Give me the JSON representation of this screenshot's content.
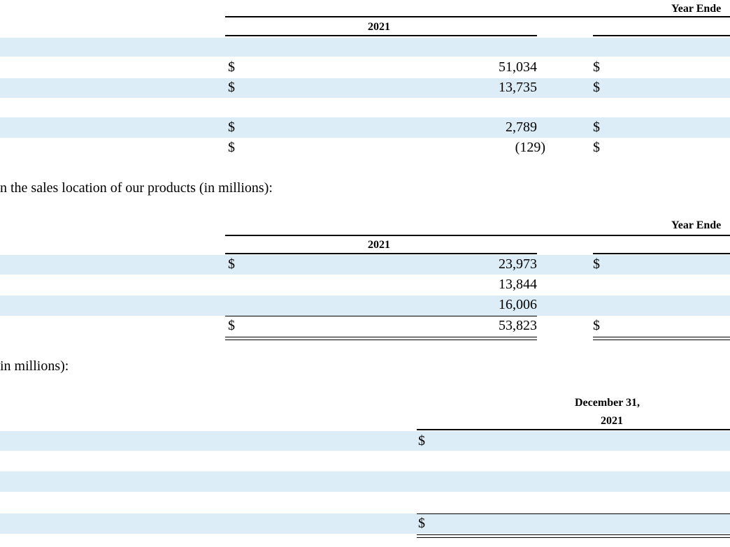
{
  "table1": {
    "header_group": "Year Ende",
    "header_year": "2021",
    "rows": [
      {
        "currency": "$",
        "value": "51,034",
        "currency2": "$"
      },
      {
        "currency": "$",
        "value": "13,735",
        "currency2": "$"
      },
      {
        "currency": "$",
        "value": "2,789",
        "currency2": "$"
      },
      {
        "currency": "$",
        "value": "(129)",
        "currency2": "$"
      }
    ]
  },
  "paragraph1": "n the sales location of our products (in millions):",
  "table2": {
    "header_group": "Year Ende",
    "header_year": "2021",
    "rows": [
      {
        "currency": "$",
        "value": "23,973",
        "currency2": "$"
      },
      {
        "currency": "",
        "value": "13,844",
        "currency2": ""
      },
      {
        "currency": "",
        "value": "16,006",
        "currency2": ""
      },
      {
        "currency": "$",
        "value": "53,823",
        "currency2": "$"
      }
    ]
  },
  "paragraph2": "in millions):",
  "table3": {
    "header_line1": "December 31,",
    "header_line2": "2021",
    "rows": [
      {
        "currency": "$"
      },
      {
        "currency": ""
      },
      {
        "currency": ""
      },
      {
        "currency": ""
      },
      {
        "currency": "$"
      }
    ]
  }
}
